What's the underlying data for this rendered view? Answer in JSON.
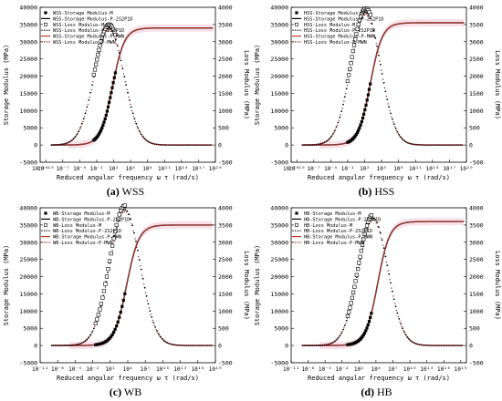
{
  "charts": [
    {
      "id": "a",
      "caption_letter": "(a)",
      "caption_name": "WSS",
      "xlabel": "Reduced angular frequency  ω τ  (rad/s)",
      "ylabel_left": "Storage Modulus (MPa)",
      "ylabel_right": "Loss Modulus (MPa)",
      "legend": [
        "WSS-Storage Modulus-M",
        "WSS-Storage Modulus-P-2S2P1D",
        "WSS-Loss Modulus-M",
        "WSS-Loss Modulus-P-2S2P1D",
        "WSS-Storage Modulus-P-MWN",
        "WSS-Loss Modulus-P-MWN"
      ]
    },
    {
      "id": "b",
      "caption_letter": "(b)",
      "caption_name": "HSS",
      "xlabel": "Reduced angular frequency  ω τ  (rad/s)",
      "ylabel_left": "Storage Modulus (MPa)",
      "ylabel_right": "Loss Modulus (MPa)",
      "legend": [
        "HSS-Storage Modulus-M",
        "HSS-Storage Modulus-P-2S2P1D",
        "HSS-Loss Modulus-M",
        "HSS-Loss Modulus-P-2S2P1D",
        "HSS-Storage Modulus-P-MWN",
        "HSS-Loss Modulus-P-MWN"
      ]
    },
    {
      "id": "c",
      "caption_letter": "(c)",
      "caption_name": "WB",
      "xlabel": "Reduced angular frequency  ω τ  (rad/s)",
      "ylabel_left": "Storage Modulus (MPa)",
      "ylabel_right": "Loss Modulus (MPa)",
      "legend": [
        "WB-Storage Modulus-M",
        "WB-Storage Modulus-P-2S2P1D",
        "WB-Loss Modulus-M",
        "WB-Loss Modulus-P-2S2P1D",
        "WB-Storage Modulus-P-MWN",
        "WB-Loss Modulus-P-MWN"
      ]
    },
    {
      "id": "d",
      "caption_letter": "(d)",
      "caption_name": "HB",
      "xlabel": "Reduced angular frequency  ω τ  (rad/s)",
      "ylabel_left": "Storage Modulus (MPa)",
      "ylabel_right": "Loss Modulus (MPa)",
      "legend": [
        "HB-Storage Modulus-M",
        "HB-Storage Modulus-P-2S2P1D",
        "HB-Loss Modulus-M",
        "HB-Loss Modulus-P-2S2P1D",
        "HB-Storage Modulus-P-MWN",
        "HB-Loss Modulus-P-MWN"
      ]
    }
  ],
  "chart_data": [
    {
      "type": "scatter",
      "panel": "(a) WSS",
      "xscale": "log",
      "xlim": [
        1e-11,
        1e+20
      ],
      "xticks": [
        "10⁻¹¹",
        "10⁻¹⁰",
        "10⁻⁷",
        "10⁻⁴",
        "10⁻¹",
        "10²",
        "10⁵",
        "10⁸",
        "10¹¹",
        "10¹⁴",
        "10¹⁷",
        "10²⁰"
      ],
      "ylim_left": [
        -5000,
        40000
      ],
      "yticks_left": [
        "-5000",
        "0",
        "5000",
        "10000",
        "15000",
        "20000",
        "25000",
        "30000",
        "35000",
        "40000"
      ],
      "ylim_right": [
        -500,
        4000
      ],
      "yticks_right": [
        "-500",
        "0",
        "500",
        "1000",
        "1500",
        "2000",
        "2500",
        "3000",
        "3500",
        "4000"
      ],
      "storage_plateau": 34000,
      "storage_center_log10": 1.8,
      "loss_peak": 3400,
      "loss_peak_log10": 1.2,
      "measured_log10_range": [
        -1.5,
        2.3
      ],
      "series": [
        {
          "name": "WSS-Storage Modulus-M",
          "marker": "filled-square",
          "color": "#000000",
          "axis": "left"
        },
        {
          "name": "WSS-Storage Modulus-P-2S2P1D",
          "marker": "line",
          "color": "#000000",
          "axis": "left"
        },
        {
          "name": "WSS-Loss Modulus-M",
          "marker": "open-square",
          "color": "#000000",
          "axis": "right"
        },
        {
          "name": "WSS-Loss Modulus-P-2S2P1D",
          "marker": "dot",
          "color": "#000000",
          "axis": "right"
        },
        {
          "name": "WSS-Storage Modulus-P-MWN",
          "marker": "line",
          "color": "#c0392b",
          "axis": "left"
        },
        {
          "name": "WSS-Loss Modulus-P-MWN",
          "marker": "dotted",
          "color": "#8b1a1a",
          "axis": "right"
        }
      ]
    },
    {
      "type": "scatter",
      "panel": "(b) HSS",
      "xscale": "log",
      "xlim": [
        1e-11,
        1e+20
      ],
      "xticks": [
        "10⁻¹¹",
        "10⁻¹⁰",
        "10⁻⁷",
        "10⁻⁴",
        "10⁻¹",
        "10²",
        "10⁵",
        "10⁸",
        "10¹¹",
        "10¹⁴",
        "10¹⁷",
        "10²⁰"
      ],
      "ylim_left": [
        -5000,
        40000
      ],
      "yticks_left": [
        "-5000",
        "0",
        "5000",
        "10000",
        "15000",
        "20000",
        "25000",
        "30000",
        "35000",
        "40000"
      ],
      "ylim_right": [
        -500,
        4000
      ],
      "yticks_right": [
        "-500",
        "0",
        "500",
        "1000",
        "1500",
        "2000",
        "2500",
        "3000",
        "3500",
        "4000"
      ],
      "storage_plateau": 35500,
      "storage_center_log10": 3.0,
      "loss_peak": 3850,
      "loss_peak_log10": 2.2,
      "measured_log10_range": [
        -1.0,
        3.0
      ],
      "series": [
        {
          "name": "HSS-Storage Modulus-M",
          "marker": "filled-square",
          "color": "#000000",
          "axis": "left"
        },
        {
          "name": "HSS-Storage Modulus-P-2S2P1D",
          "marker": "line",
          "color": "#000000",
          "axis": "left"
        },
        {
          "name": "HSS-Loss Modulus-M",
          "marker": "open-square",
          "color": "#000000",
          "axis": "right"
        },
        {
          "name": "HSS-Loss Modulus-P-2S2P1D",
          "marker": "dot",
          "color": "#000000",
          "axis": "right"
        },
        {
          "name": "HSS-Storage Modulus-P-MWN",
          "marker": "line",
          "color": "#c0392b",
          "axis": "left"
        },
        {
          "name": "HSS-Loss Modulus-P-MWN",
          "marker": "dotted",
          "color": "#8b1a1a",
          "axis": "right"
        }
      ]
    },
    {
      "type": "scatter",
      "panel": "(c) WB",
      "xscale": "log",
      "xlim": [
        1e-11,
        1e+19
      ],
      "xticks": [
        "10⁻¹¹",
        "10⁻⁸",
        "10⁻⁵",
        "10⁻²",
        "10¹",
        "10⁴",
        "10⁷",
        "10¹⁰",
        "10¹³",
        "10¹⁶",
        "10¹⁹"
      ],
      "ylim_left": [
        -5000,
        40000
      ],
      "yticks_left": [
        "-5000",
        "0",
        "5000",
        "10000",
        "15000",
        "20000",
        "25000",
        "30000",
        "35000",
        "40000"
      ],
      "ylim_right": [
        -500,
        4000
      ],
      "yticks_right": [
        "-500",
        "0",
        "500",
        "1000",
        "1500",
        "2000",
        "2500",
        "3000",
        "3500",
        "4000"
      ],
      "storage_plateau": 35000,
      "storage_center_log10": 3.8,
      "loss_peak": 3950,
      "loss_peak_log10": 3.5,
      "measured_log10_range": [
        -1.5,
        3.5
      ],
      "series": [
        {
          "name": "WB-Storage Modulus-M",
          "marker": "filled-square",
          "color": "#000000",
          "axis": "left"
        },
        {
          "name": "WB-Storage Modulus-P-2S2P1D",
          "marker": "line",
          "color": "#000000",
          "axis": "left"
        },
        {
          "name": "WB-Loss Modulus-M",
          "marker": "open-square",
          "color": "#000000",
          "axis": "right"
        },
        {
          "name": "WB-Loss Modulus-P-2S2P1D",
          "marker": "dot",
          "color": "#000000",
          "axis": "right"
        },
        {
          "name": "WB-Storage Modulus-P-MWN",
          "marker": "line",
          "color": "#c0392b",
          "axis": "left"
        },
        {
          "name": "WB-Loss Modulus-P-MWN",
          "marker": "dotted",
          "color": "#8b1a1a",
          "axis": "right"
        }
      ]
    },
    {
      "type": "scatter",
      "panel": "(d) HB",
      "xscale": "log",
      "xlim": [
        1e-11,
        1e+20
      ],
      "xticks": [
        "10⁻¹¹",
        "10⁻⁸",
        "10⁻⁵",
        "10⁻²",
        "10¹",
        "10⁴",
        "10⁷",
        "10¹⁰",
        "10¹³",
        "10¹⁶",
        "10¹⁹"
      ],
      "ylim_left": [
        -5000,
        40000
      ],
      "yticks_left": [
        "-5000",
        "0",
        "5000",
        "10000",
        "15000",
        "20000",
        "25000",
        "30000",
        "35000",
        "40000"
      ],
      "ylim_right": [
        -500,
        4000
      ],
      "yticks_right": [
        "-500",
        "0",
        "500",
        "1000",
        "1500",
        "2000",
        "2500",
        "3000",
        "3500",
        "4000"
      ],
      "storage_plateau": 36000,
      "storage_center_log10": 4.3,
      "loss_peak": 3700,
      "loss_peak_log10": 3.5,
      "measured_log10_range": [
        -1.0,
        3.2
      ],
      "series": [
        {
          "name": "HB-Storage Modulus-M",
          "marker": "filled-square",
          "color": "#000000",
          "axis": "left"
        },
        {
          "name": "HB-Storage Modulus-P-2S2P1D",
          "marker": "line",
          "color": "#000000",
          "axis": "left"
        },
        {
          "name": "HB-Loss Modulus-M",
          "marker": "open-square",
          "color": "#000000",
          "axis": "right"
        },
        {
          "name": "HB-Loss Modulus-P-2S2P1D",
          "marker": "dot",
          "color": "#000000",
          "axis": "right"
        },
        {
          "name": "HB-Storage Modulus-P-MWN",
          "marker": "line",
          "color": "#c0392b",
          "axis": "left"
        },
        {
          "name": "HB-Loss Modulus-P-MWN",
          "marker": "dotted",
          "color": "#8b1a1a",
          "axis": "right"
        }
      ]
    }
  ]
}
